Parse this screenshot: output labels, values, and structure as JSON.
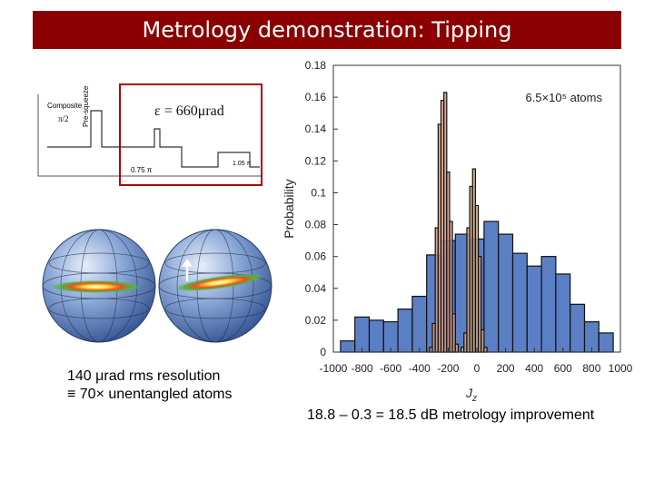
{
  "slide": {
    "title": "Metrology demonstration: Tipping",
    "epsilon_label": "ε = 660μrad",
    "caption_line1": "140 μrad rms resolution",
    "caption_line2": "≡ 70× unentangled atoms",
    "bottom_text": "18.8 – 0.3 = 18.5 dB metrology improvement"
  },
  "sequence": {
    "composite_label": "Composite",
    "pi_over_2": "π/2",
    "presqueeze_label": "Pre-squeeze",
    "pulse_a_label": "0.75 π",
    "pulse_b_label": "1.05 π"
  },
  "chart_data": {
    "type": "bar",
    "annotation": "6.5×10⁵ atoms",
    "ylabel": "Probability",
    "xlabel": "Jz",
    "xlim": [
      -1000,
      1000
    ],
    "ylim": [
      0,
      0.18
    ],
    "xticks": [
      "-1000",
      "-800",
      "-600",
      "-400",
      "-200",
      "0",
      "200",
      "400",
      "600",
      "800",
      "1000"
    ],
    "yticks": [
      "0",
      "0.02",
      "0.04",
      "0.06",
      "0.08",
      "0.1",
      "0.12",
      "0.14",
      "0.16",
      "0.18"
    ],
    "series": [
      {
        "color": "#5b7fc4",
        "bins": [
          {
            "x0": -950,
            "x1": -850,
            "y": 0.007
          },
          {
            "x0": -850,
            "x1": -750,
            "y": 0.022
          },
          {
            "x0": -750,
            "x1": -650,
            "y": 0.02
          },
          {
            "x0": -650,
            "x1": -550,
            "y": 0.019
          },
          {
            "x0": -550,
            "x1": -450,
            "y": 0.027
          },
          {
            "x0": -450,
            "x1": -350,
            "y": 0.035
          },
          {
            "x0": -350,
            "x1": -250,
            "y": 0.061
          },
          {
            "x0": -250,
            "x1": -150,
            "y": 0.07
          },
          {
            "x0": -150,
            "x1": -50,
            "y": 0.074
          },
          {
            "x0": -50,
            "x1": 50,
            "y": 0.071
          },
          {
            "x0": 50,
            "x1": 150,
            "y": 0.082
          },
          {
            "x0": 150,
            "x1": 250,
            "y": 0.074
          },
          {
            "x0": 250,
            "x1": 350,
            "y": 0.062
          },
          {
            "x0": 350,
            "x1": 450,
            "y": 0.054
          },
          {
            "x0": 450,
            "x1": 550,
            "y": 0.06
          },
          {
            "x0": 550,
            "x1": 650,
            "y": 0.049
          },
          {
            "x0": 650,
            "x1": 750,
            "y": 0.03
          },
          {
            "x0": 750,
            "x1": 850,
            "y": 0.019
          },
          {
            "x0": 850,
            "x1": 950,
            "y": 0.012
          }
        ]
      },
      {
        "color": "#d39a84",
        "bins": [
          {
            "x0": -330,
            "x1": -310,
            "y": 0.003
          },
          {
            "x0": -310,
            "x1": -290,
            "y": 0.018
          },
          {
            "x0": -290,
            "x1": -270,
            "y": 0.078
          },
          {
            "x0": -270,
            "x1": -250,
            "y": 0.143
          },
          {
            "x0": -250,
            "x1": -230,
            "y": 0.158
          },
          {
            "x0": -230,
            "x1": -210,
            "y": 0.163
          },
          {
            "x0": -210,
            "x1": -190,
            "y": 0.113
          },
          {
            "x0": -190,
            "x1": -170,
            "y": 0.082
          },
          {
            "x0": -170,
            "x1": -150,
            "y": 0.024
          },
          {
            "x0": -150,
            "x1": -130,
            "y": 0.005
          }
        ]
      },
      {
        "color": "#caa27a",
        "bins": [
          {
            "x0": -110,
            "x1": -90,
            "y": 0.003
          },
          {
            "x0": -90,
            "x1": -70,
            "y": 0.012
          },
          {
            "x0": -70,
            "x1": -50,
            "y": 0.078
          },
          {
            "x0": -50,
            "x1": -30,
            "y": 0.104
          },
          {
            "x0": -30,
            "x1": -10,
            "y": 0.115
          },
          {
            "x0": -10,
            "x1": 10,
            "y": 0.092
          },
          {
            "x0": 10,
            "x1": 30,
            "y": 0.06
          },
          {
            "x0": 30,
            "x1": 50,
            "y": 0.014
          },
          {
            "x0": 50,
            "x1": 70,
            "y": 0.003
          }
        ]
      }
    ]
  }
}
